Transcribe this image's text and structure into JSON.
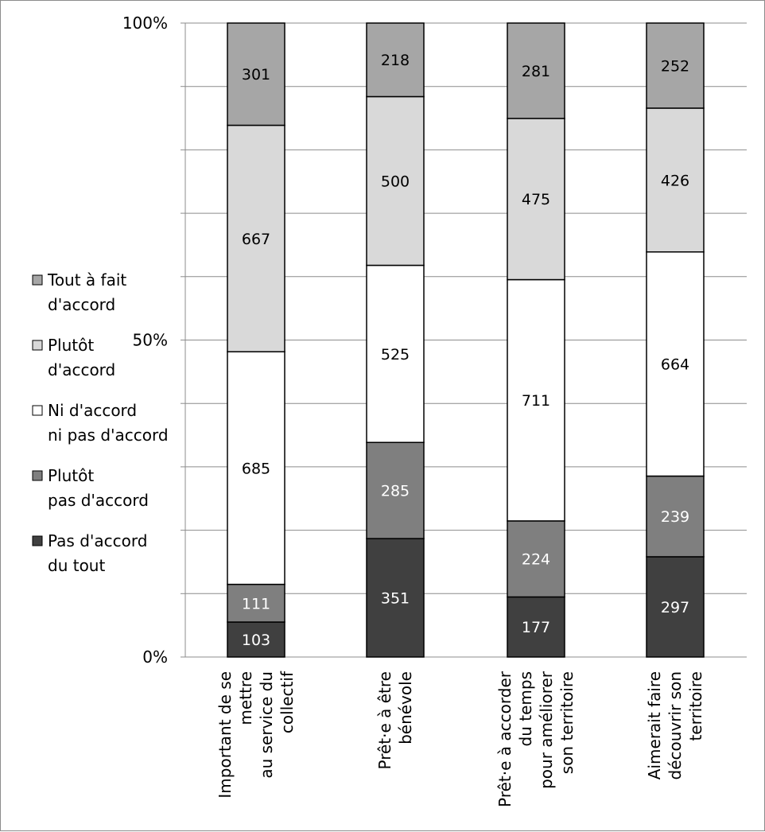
{
  "chart_data": {
    "type": "bar",
    "stacked": "percent",
    "categories": [
      [
        "Important de se",
        "mettre",
        "au service du",
        "collectif"
      ],
      [
        "Prêt·e à être",
        "bénévole"
      ],
      [
        "Prêt·e à accorder",
        "du temps",
        "pour améliorer",
        "son territoire"
      ],
      [
        "Aimerait faire",
        "découvrir son",
        "territoire"
      ]
    ],
    "series": [
      {
        "name": "Pas d'accord du tout",
        "legend_lines": [
          "Pas d'accord",
          "du tout"
        ],
        "color": "#404040",
        "label_color": "#ffffff",
        "values": [
          103,
          351,
          177,
          297
        ]
      },
      {
        "name": "Plutôt pas d'accord",
        "legend_lines": [
          "Plutôt",
          "pas d'accord"
        ],
        "color": "#7f7f7f",
        "label_color": "#ffffff",
        "values": [
          111,
          285,
          224,
          239
        ]
      },
      {
        "name": "Ni d'accord ni pas d'accord",
        "legend_lines": [
          "Ni d'accord",
          "ni pas d'accord"
        ],
        "color": "#ffffff",
        "label_color": "#000000",
        "values": [
          685,
          525,
          711,
          664
        ]
      },
      {
        "name": "Plutôt d'accord",
        "legend_lines": [
          "Plutôt",
          "d'accord"
        ],
        "color": "#d9d9d9",
        "label_color": "#000000",
        "values": [
          667,
          500,
          475,
          426
        ]
      },
      {
        "name": "Tout à fait d'accord",
        "legend_lines": [
          "Tout à fait",
          "d'accord"
        ],
        "color": "#a6a6a6",
        "label_color": "#000000",
        "values": [
          301,
          218,
          281,
          252
        ]
      }
    ],
    "y_ticks": [
      "0%",
      "50%",
      "100%"
    ],
    "ylim": [
      0,
      100
    ],
    "gridlines": 10,
    "grid": true,
    "legend_position": "left"
  }
}
